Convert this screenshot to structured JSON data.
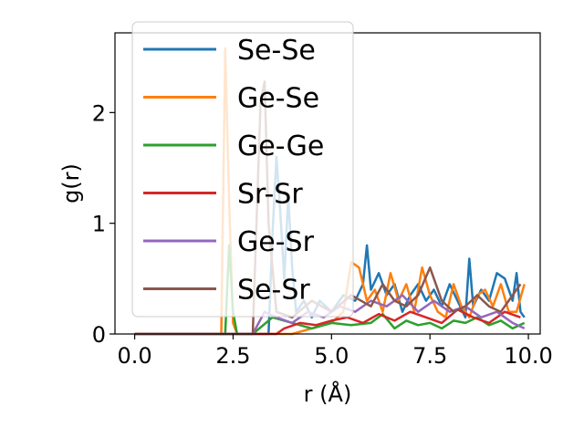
{
  "chart_data": {
    "type": "line",
    "xlabel": "r (Å)",
    "ylabel": "g(r)",
    "xlim": [
      -0.5,
      10.3
    ],
    "ylim": [
      0,
      2.72
    ],
    "xticks": [
      0.0,
      2.5,
      5.0,
      7.5,
      10.0
    ],
    "xtick_labels": [
      "0.0",
      "2.5",
      "5.0",
      "7.5",
      "10.0"
    ],
    "yticks": [
      0,
      1,
      2
    ],
    "ytick_labels": [
      "0",
      "1",
      "2"
    ],
    "grid": false,
    "legend_position": "upper-left",
    "series": [
      {
        "name": "Se-Se",
        "color": "#1f77b4",
        "x": [
          0,
          3.4,
          3.5,
          3.6,
          3.7,
          3.8,
          3.9,
          4.0,
          4.1,
          4.3,
          4.5,
          4.7,
          5.0,
          5.3,
          5.6,
          5.8,
          5.9,
          6.0,
          6.2,
          6.4,
          6.6,
          6.8,
          7.0,
          7.2,
          7.4,
          7.6,
          7.8,
          8.0,
          8.2,
          8.4,
          8.5,
          8.6,
          8.8,
          9.0,
          9.2,
          9.4,
          9.6,
          9.7,
          9.8,
          9.9
        ],
        "y": [
          0,
          0,
          0.9,
          1.6,
          1.1,
          0.5,
          1.25,
          0.6,
          0.2,
          0.3,
          0.15,
          0.3,
          0.2,
          0.35,
          0.3,
          0.45,
          0.8,
          0.4,
          0.55,
          0.35,
          0.45,
          0.2,
          0.35,
          0.45,
          0.3,
          0.4,
          0.25,
          0.45,
          0.3,
          0.15,
          0.68,
          0.25,
          0.4,
          0.3,
          0.55,
          0.5,
          0.3,
          0.55,
          0.2,
          0.15
        ]
      },
      {
        "name": "Ge-Se",
        "color": "#ff7f0e",
        "x": [
          0,
          2.2,
          2.3,
          2.4,
          2.5,
          2.6,
          3.0,
          3.5,
          4.0,
          4.5,
          5.0,
          5.3,
          5.5,
          5.7,
          5.9,
          6.1,
          6.3,
          6.5,
          6.7,
          6.9,
          7.1,
          7.3,
          7.5,
          7.7,
          7.9,
          8.1,
          8.3,
          8.5,
          8.7,
          8.9,
          9.1,
          9.3,
          9.5,
          9.7,
          9.9
        ],
        "y": [
          0,
          0,
          2.58,
          1.2,
          0.1,
          0,
          0,
          0,
          0,
          0.05,
          0.1,
          0.2,
          0.65,
          0.6,
          0.3,
          0.4,
          0.2,
          0.55,
          0.3,
          0.45,
          0.2,
          0.6,
          0.35,
          0.2,
          0.15,
          0.45,
          0.25,
          0.15,
          0.35,
          0.4,
          0.25,
          0.45,
          0.2,
          0.2,
          0.45
        ]
      },
      {
        "name": "Ge-Ge",
        "color": "#2ca02c",
        "x": [
          0,
          2.3,
          2.4,
          2.5,
          2.6,
          3.0,
          3.5,
          4.0,
          4.5,
          5.0,
          5.5,
          6.0,
          6.3,
          6.6,
          6.9,
          7.2,
          7.5,
          7.8,
          8.1,
          8.4,
          8.7,
          9.0,
          9.3,
          9.6,
          9.9
        ],
        "y": [
          0,
          0,
          0.8,
          0.2,
          0,
          0,
          0.15,
          0.1,
          0.05,
          0.1,
          0.08,
          0.1,
          0.18,
          0.05,
          0.12,
          0.08,
          0.1,
          0.05,
          0.12,
          0.1,
          0.15,
          0.08,
          0.12,
          0.05,
          0.1
        ]
      },
      {
        "name": "Sr-Sr",
        "color": "#d62728",
        "x": [
          0,
          3.6,
          3.8,
          4.2,
          4.6,
          5.0,
          5.4,
          5.8,
          6.2,
          6.6,
          7.0,
          7.4,
          7.8,
          8.2,
          8.6,
          9.0,
          9.4,
          9.8
        ],
        "y": [
          0,
          0,
          0.05,
          0.1,
          0.08,
          0.12,
          0.15,
          0.1,
          0.18,
          0.12,
          0.2,
          0.15,
          0.1,
          0.22,
          0.15,
          0.1,
          0.2,
          0.15
        ]
      },
      {
        "name": "Ge-Sr",
        "color": "#9467bd",
        "x": [
          0,
          3.0,
          3.3,
          3.6,
          4.0,
          4.4,
          4.8,
          5.2,
          5.6,
          6.0,
          6.4,
          6.8,
          7.2,
          7.6,
          8.0,
          8.4,
          8.8,
          9.2,
          9.6,
          9.9
        ],
        "y": [
          0,
          0,
          0.2,
          0.15,
          0.1,
          0.2,
          0.15,
          0.25,
          0.2,
          0.3,
          0.25,
          0.35,
          0.2,
          0.3,
          0.2,
          0.25,
          0.15,
          0.2,
          0.1,
          0.05
        ]
      },
      {
        "name": "Se-Sr",
        "color": "#8c564b",
        "x": [
          0,
          3.0,
          3.2,
          3.3,
          3.4,
          3.6,
          4.0,
          4.5,
          5.0,
          5.5,
          6.0,
          6.3,
          6.6,
          6.9,
          7.2,
          7.5,
          7.8,
          8.1,
          8.4,
          8.7,
          9.0,
          9.3,
          9.6,
          9.8
        ],
        "y": [
          0,
          0,
          2.1,
          2.28,
          1.0,
          0.2,
          0.15,
          0.3,
          0.2,
          0.35,
          0.25,
          0.45,
          0.3,
          0.25,
          0.35,
          0.6,
          0.3,
          0.2,
          0.25,
          0.35,
          0.25,
          0.2,
          0.35,
          0.45
        ]
      }
    ]
  }
}
